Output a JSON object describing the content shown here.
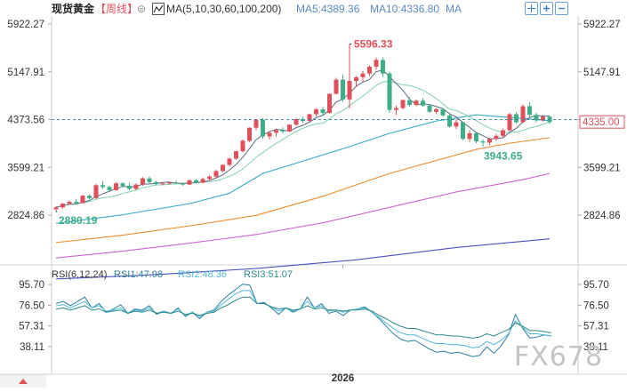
{
  "header": {
    "instrument": "现货黄金",
    "period": "【周线】",
    "ma_label": "MA(5,10,30,60,100,200)",
    "ma5_label": "MA5:4389.36",
    "ma10_label": "MA10:4336.80",
    "ma_extra": "MA"
  },
  "rsi_header": {
    "label": "RSI(6,12,24)",
    "rsi1": "RSI1:47.98",
    "rsi2": "RSI2:48.36",
    "rsi3": "RSI3:51.07"
  },
  "watermark": "FX678",
  "colors": {
    "up": "#e0505a",
    "down": "#3fae86",
    "ma5": "#5a6b84",
    "ma10": "#7fcfb0",
    "ma30": "#32a9c8",
    "ma60": "#f08c2a",
    "ma100": "#d163d4",
    "ma200": "#4b4fbf",
    "rsi1": "#2d7fa0",
    "rsi2": "#4fb8d8",
    "rsi3": "#2a8a88",
    "price_line": "#3a8aa8",
    "label": "#e0505a"
  },
  "chart_data": [
    {
      "type": "candlestick",
      "period": "weekly",
      "x_labels": [
        "2026"
      ],
      "y_ticks": [
        2824.86,
        3599.21,
        4373.56,
        5147.91,
        5922.27
      ],
      "ylim": [
        2260,
        6000
      ],
      "current_price": 4335.0,
      "annotations": {
        "high": 5596.33,
        "low_start": 2880.19,
        "low_recent": 3943.65
      },
      "ohlc": [
        [
          2920,
          2970,
          2880,
          2950
        ],
        [
          2950,
          3020,
          2930,
          3010
        ],
        [
          3010,
          3060,
          2990,
          3040
        ],
        [
          3040,
          3080,
          3000,
          3020
        ],
        [
          3020,
          3150,
          3010,
          3140
        ],
        [
          3140,
          3160,
          3080,
          3100
        ],
        [
          3100,
          3330,
          3090,
          3310
        ],
        [
          3310,
          3380,
          3250,
          3280
        ],
        [
          3280,
          3300,
          3200,
          3230
        ],
        [
          3230,
          3360,
          3220,
          3340
        ],
        [
          3340,
          3360,
          3270,
          3300
        ],
        [
          3300,
          3350,
          3230,
          3250
        ],
        [
          3250,
          3340,
          3230,
          3320
        ],
        [
          3320,
          3440,
          3300,
          3420
        ],
        [
          3420,
          3450,
          3340,
          3360
        ],
        [
          3360,
          3380,
          3310,
          3330
        ],
        [
          3330,
          3360,
          3310,
          3340
        ],
        [
          3340,
          3370,
          3320,
          3350
        ],
        [
          3350,
          3380,
          3320,
          3340
        ],
        [
          3340,
          3360,
          3300,
          3320
        ],
        [
          3320,
          3400,
          3310,
          3390
        ],
        [
          3390,
          3410,
          3330,
          3350
        ],
        [
          3350,
          3430,
          3340,
          3410
        ],
        [
          3410,
          3470,
          3380,
          3450
        ],
        [
          3450,
          3560,
          3430,
          3540
        ],
        [
          3540,
          3650,
          3520,
          3640
        ],
        [
          3640,
          3760,
          3610,
          3740
        ],
        [
          3740,
          3870,
          3720,
          3860
        ],
        [
          3860,
          4050,
          3840,
          4030
        ],
        [
          4030,
          4250,
          4010,
          4240
        ],
        [
          4240,
          4380,
          4200,
          4370
        ],
        [
          4370,
          4400,
          4060,
          4100
        ],
        [
          4100,
          4180,
          4050,
          4160
        ],
        [
          4160,
          4230,
          4100,
          4200
        ],
        [
          4200,
          4250,
          4150,
          4180
        ],
        [
          4180,
          4300,
          4170,
          4290
        ],
        [
          4290,
          4400,
          4270,
          4380
        ],
        [
          4380,
          4420,
          4320,
          4350
        ],
        [
          4350,
          4470,
          4340,
          4460
        ],
        [
          4460,
          4560,
          4420,
          4540
        ],
        [
          4540,
          4580,
          4450,
          4480
        ],
        [
          4480,
          4800,
          4470,
          4790
        ],
        [
          4790,
          5050,
          4780,
          5020
        ],
        [
          5020,
          5100,
          4660,
          4700
        ],
        [
          4700,
          5596,
          4550,
          5000
        ],
        [
          5000,
          5080,
          4900,
          5060
        ],
        [
          5060,
          5160,
          4980,
          5120
        ],
        [
          5120,
          5250,
          5080,
          5230
        ],
        [
          5230,
          5380,
          5180,
          5340
        ],
        [
          5340,
          5380,
          5060,
          5120
        ],
        [
          5120,
          5150,
          4480,
          4530
        ],
        [
          4530,
          4600,
          4450,
          4560
        ],
        [
          4560,
          4700,
          4540,
          4690
        ],
        [
          4690,
          4740,
          4580,
          4610
        ],
        [
          4610,
          4700,
          4590,
          4680
        ],
        [
          4680,
          4720,
          4580,
          4600
        ],
        [
          4600,
          4620,
          4480,
          4500
        ],
        [
          4500,
          4560,
          4460,
          4540
        ],
        [
          4540,
          4560,
          4420,
          4440
        ],
        [
          4440,
          4460,
          4240,
          4260
        ],
        [
          4260,
          4380,
          4220,
          4330
        ],
        [
          4330,
          4340,
          4040,
          4060
        ],
        [
          4060,
          4200,
          4010,
          4150
        ],
        [
          4150,
          4160,
          3990,
          4020
        ],
        [
          4020,
          4050,
          3943,
          4000
        ],
        [
          4000,
          4080,
          3960,
          4060
        ],
        [
          4060,
          4140,
          4030,
          4110
        ],
        [
          4110,
          4230,
          4080,
          4200
        ],
        [
          4200,
          4480,
          4180,
          4460
        ],
        [
          4460,
          4490,
          4310,
          4330
        ],
        [
          4330,
          4620,
          4320,
          4590
        ],
        [
          4590,
          4650,
          4420,
          4450
        ],
        [
          4450,
          4480,
          4330,
          4360
        ],
        [
          4360,
          4450,
          4340,
          4420
        ],
        [
          4420,
          4440,
          4300,
          4335
        ]
      ],
      "ma_lines": {
        "ma30": [
          [
            0,
            2690
          ],
          [
            10,
            2830
          ],
          [
            20,
            3010
          ],
          [
            26,
            3180
          ],
          [
            31,
            3500
          ],
          [
            37,
            3700
          ],
          [
            43,
            3900
          ],
          [
            50,
            4150
          ],
          [
            57,
            4350
          ],
          [
            63,
            4450
          ],
          [
            69,
            4400
          ],
          [
            74,
            4355
          ]
        ],
        "ma60": [
          [
            0,
            2380
          ],
          [
            10,
            2500
          ],
          [
            20,
            2650
          ],
          [
            30,
            2820
          ],
          [
            40,
            3130
          ],
          [
            50,
            3500
          ],
          [
            58,
            3740
          ],
          [
            63,
            3890
          ],
          [
            68,
            3990
          ],
          [
            74,
            4080
          ]
        ],
        "ma100": [
          [
            0,
            2130
          ],
          [
            10,
            2240
          ],
          [
            20,
            2370
          ],
          [
            30,
            2510
          ],
          [
            40,
            2700
          ],
          [
            50,
            2950
          ],
          [
            60,
            3200
          ],
          [
            70,
            3400
          ],
          [
            74,
            3500
          ]
        ],
        "ma200": [
          [
            0,
            1790
          ],
          [
            15,
            1860
          ],
          [
            30,
            1960
          ],
          [
            45,
            2100
          ],
          [
            60,
            2300
          ],
          [
            74,
            2440
          ]
        ]
      }
    },
    {
      "type": "line",
      "name": "RSI(6,12,24)",
      "y_ticks": [
        38.11,
        57.31,
        76.5,
        95.7
      ],
      "ylim": [
        25,
        101
      ],
      "series": [
        {
          "name": "RSI1",
          "values": [
            78,
            80,
            76,
            80,
            84,
            74,
            78,
            70,
            73,
            77,
            69,
            73,
            72,
            76,
            68,
            71,
            69,
            74,
            66,
            70,
            64,
            70,
            72,
            80,
            86,
            91,
            96,
            95,
            78,
            79,
            74,
            68,
            74,
            70,
            73,
            84,
            74,
            78,
            69,
            71,
            67,
            72,
            73,
            75,
            70,
            64,
            57,
            50,
            45,
            43,
            44,
            40,
            36,
            33,
            34,
            32,
            33,
            31,
            29,
            30,
            38,
            32,
            39,
            49,
            68,
            55,
            46,
            47,
            49,
            48
          ]
        },
        {
          "name": "RSI2",
          "values": [
            76,
            77,
            74,
            77,
            80,
            74,
            76,
            71,
            72,
            74,
            69,
            72,
            71,
            74,
            69,
            71,
            69,
            73,
            67,
            70,
            66,
            70,
            71,
            77,
            82,
            87,
            90,
            90,
            78,
            78,
            75,
            71,
            74,
            71,
            73,
            80,
            74,
            76,
            71,
            72,
            70,
            72,
            73,
            74,
            70,
            65,
            60,
            55,
            51,
            49,
            49,
            46,
            43,
            41,
            41,
            40,
            40,
            39,
            37,
            38,
            43,
            40,
            44,
            50,
            62,
            56,
            50,
            50,
            49,
            48
          ]
        },
        {
          "name": "RSI3",
          "values": [
            73,
            74,
            72,
            74,
            76,
            72,
            73,
            70,
            71,
            72,
            69,
            71,
            70,
            72,
            69,
            70,
            69,
            71,
            68,
            69,
            67,
            69,
            70,
            74,
            77,
            81,
            84,
            84,
            78,
            78,
            75,
            73,
            74,
            72,
            73,
            76,
            73,
            74,
            72,
            72,
            71,
            72,
            72,
            73,
            71,
            67,
            64,
            60,
            57,
            55,
            55,
            53,
            51,
            49,
            49,
            48,
            48,
            47,
            46,
            47,
            50,
            48,
            51,
            54,
            60,
            57,
            53,
            53,
            52,
            51
          ]
        }
      ]
    }
  ]
}
